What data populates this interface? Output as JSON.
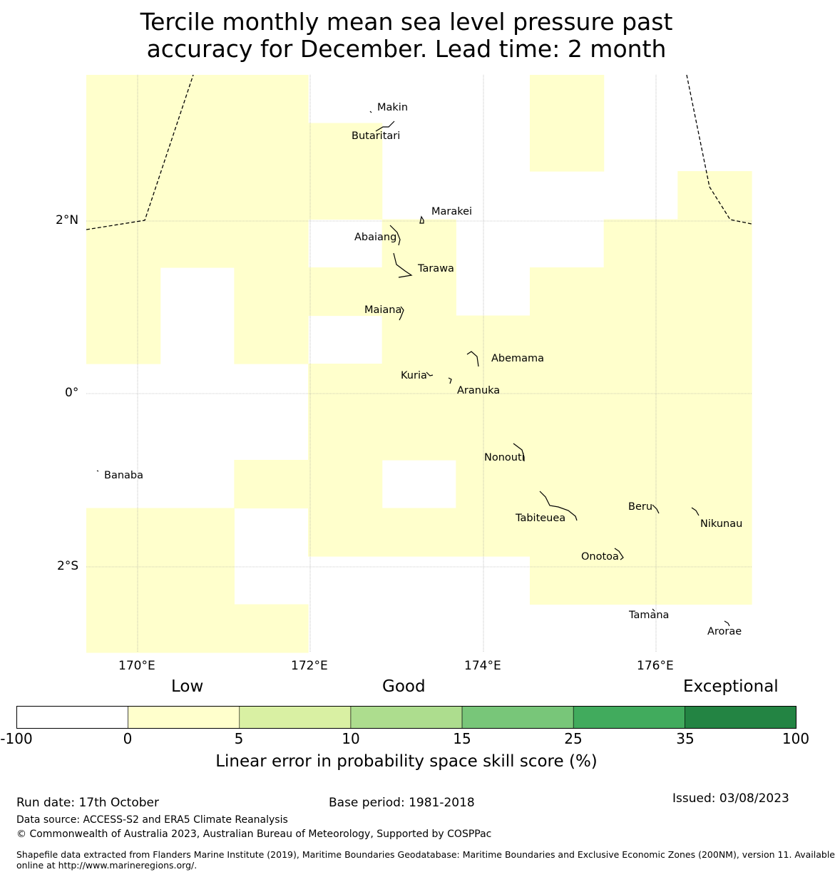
{
  "title_line1": "Tercile monthly mean sea level pressure past",
  "title_line2": "accuracy for December. Lead time: 2 month",
  "map": {
    "lat_ticks": [
      "2°N",
      "0°",
      "2°S"
    ],
    "lon_ticks": [
      "170°E",
      "172°E",
      "174°E",
      "176°E"
    ],
    "grid_columns": 9,
    "grid_rows": 12,
    "skill_category_grid": [
      [
        1,
        1,
        1,
        0,
        0,
        0,
        1,
        0,
        0
      ],
      [
        1,
        1,
        1,
        1,
        0,
        0,
        1,
        0,
        0
      ],
      [
        1,
        1,
        1,
        1,
        0,
        0,
        0,
        0,
        1
      ],
      [
        1,
        1,
        1,
        0,
        1,
        0,
        0,
        1,
        1
      ],
      [
        1,
        0,
        1,
        1,
        1,
        0,
        1,
        1,
        1
      ],
      [
        1,
        0,
        1,
        0,
        1,
        1,
        1,
        1,
        1
      ],
      [
        0,
        0,
        0,
        1,
        1,
        1,
        1,
        1,
        1
      ],
      [
        0,
        0,
        0,
        1,
        1,
        1,
        1,
        1,
        1
      ],
      [
        0,
        0,
        1,
        1,
        0,
        1,
        1,
        1,
        1
      ],
      [
        1,
        1,
        0,
        1,
        1,
        1,
        1,
        1,
        1
      ],
      [
        1,
        1,
        0,
        0,
        0,
        0,
        1,
        1,
        1
      ],
      [
        1,
        1,
        1,
        0,
        0,
        0,
        0,
        0,
        0
      ]
    ],
    "place_labels": [
      "Makin",
      "Butaritari",
      "Marakei",
      "Abaiang",
      "Tarawa",
      "Maiana",
      "Abemama",
      "Kuria",
      "Aranuka",
      "Banaba",
      "Nonouti",
      "Tabiteuea",
      "Beru",
      "Nikunau",
      "Onotoa",
      "Tamana",
      "Arorae"
    ]
  },
  "colorbar": {
    "categories": [
      "Low",
      "Good",
      "Exceptional"
    ],
    "ticks": [
      "-100",
      "0",
      "5",
      "10",
      "15",
      "25",
      "35",
      "100"
    ],
    "colors": [
      "#ffffff",
      "#ffffcc",
      "#d9f0a3",
      "#addd8e",
      "#78c679",
      "#41ab5d",
      "#238443"
    ],
    "label": "Linear error in probability space skill score (%)"
  },
  "footer": {
    "run_date": "Run date: 17th October",
    "base_period": "Base period: 1981-2018",
    "issued": "Issued: 03/08/2023",
    "data_source": "Data source: ACCESS-S2 and ERA5 Climate Reanalysis",
    "copyright": "© Commonwealth of Australia 2023, Australian Bureau of Meteorology, Supported by COSPPac",
    "shapefile_line1": "Shapefile data extracted from Flanders Marine Institute (2019), Maritime Boundaries Geodatabase: Maritime Boundaries and Exclusive Economic Zones (200NM), version 11. Available",
    "shapefile_line2": "online at http://www.marineregions.org/."
  }
}
